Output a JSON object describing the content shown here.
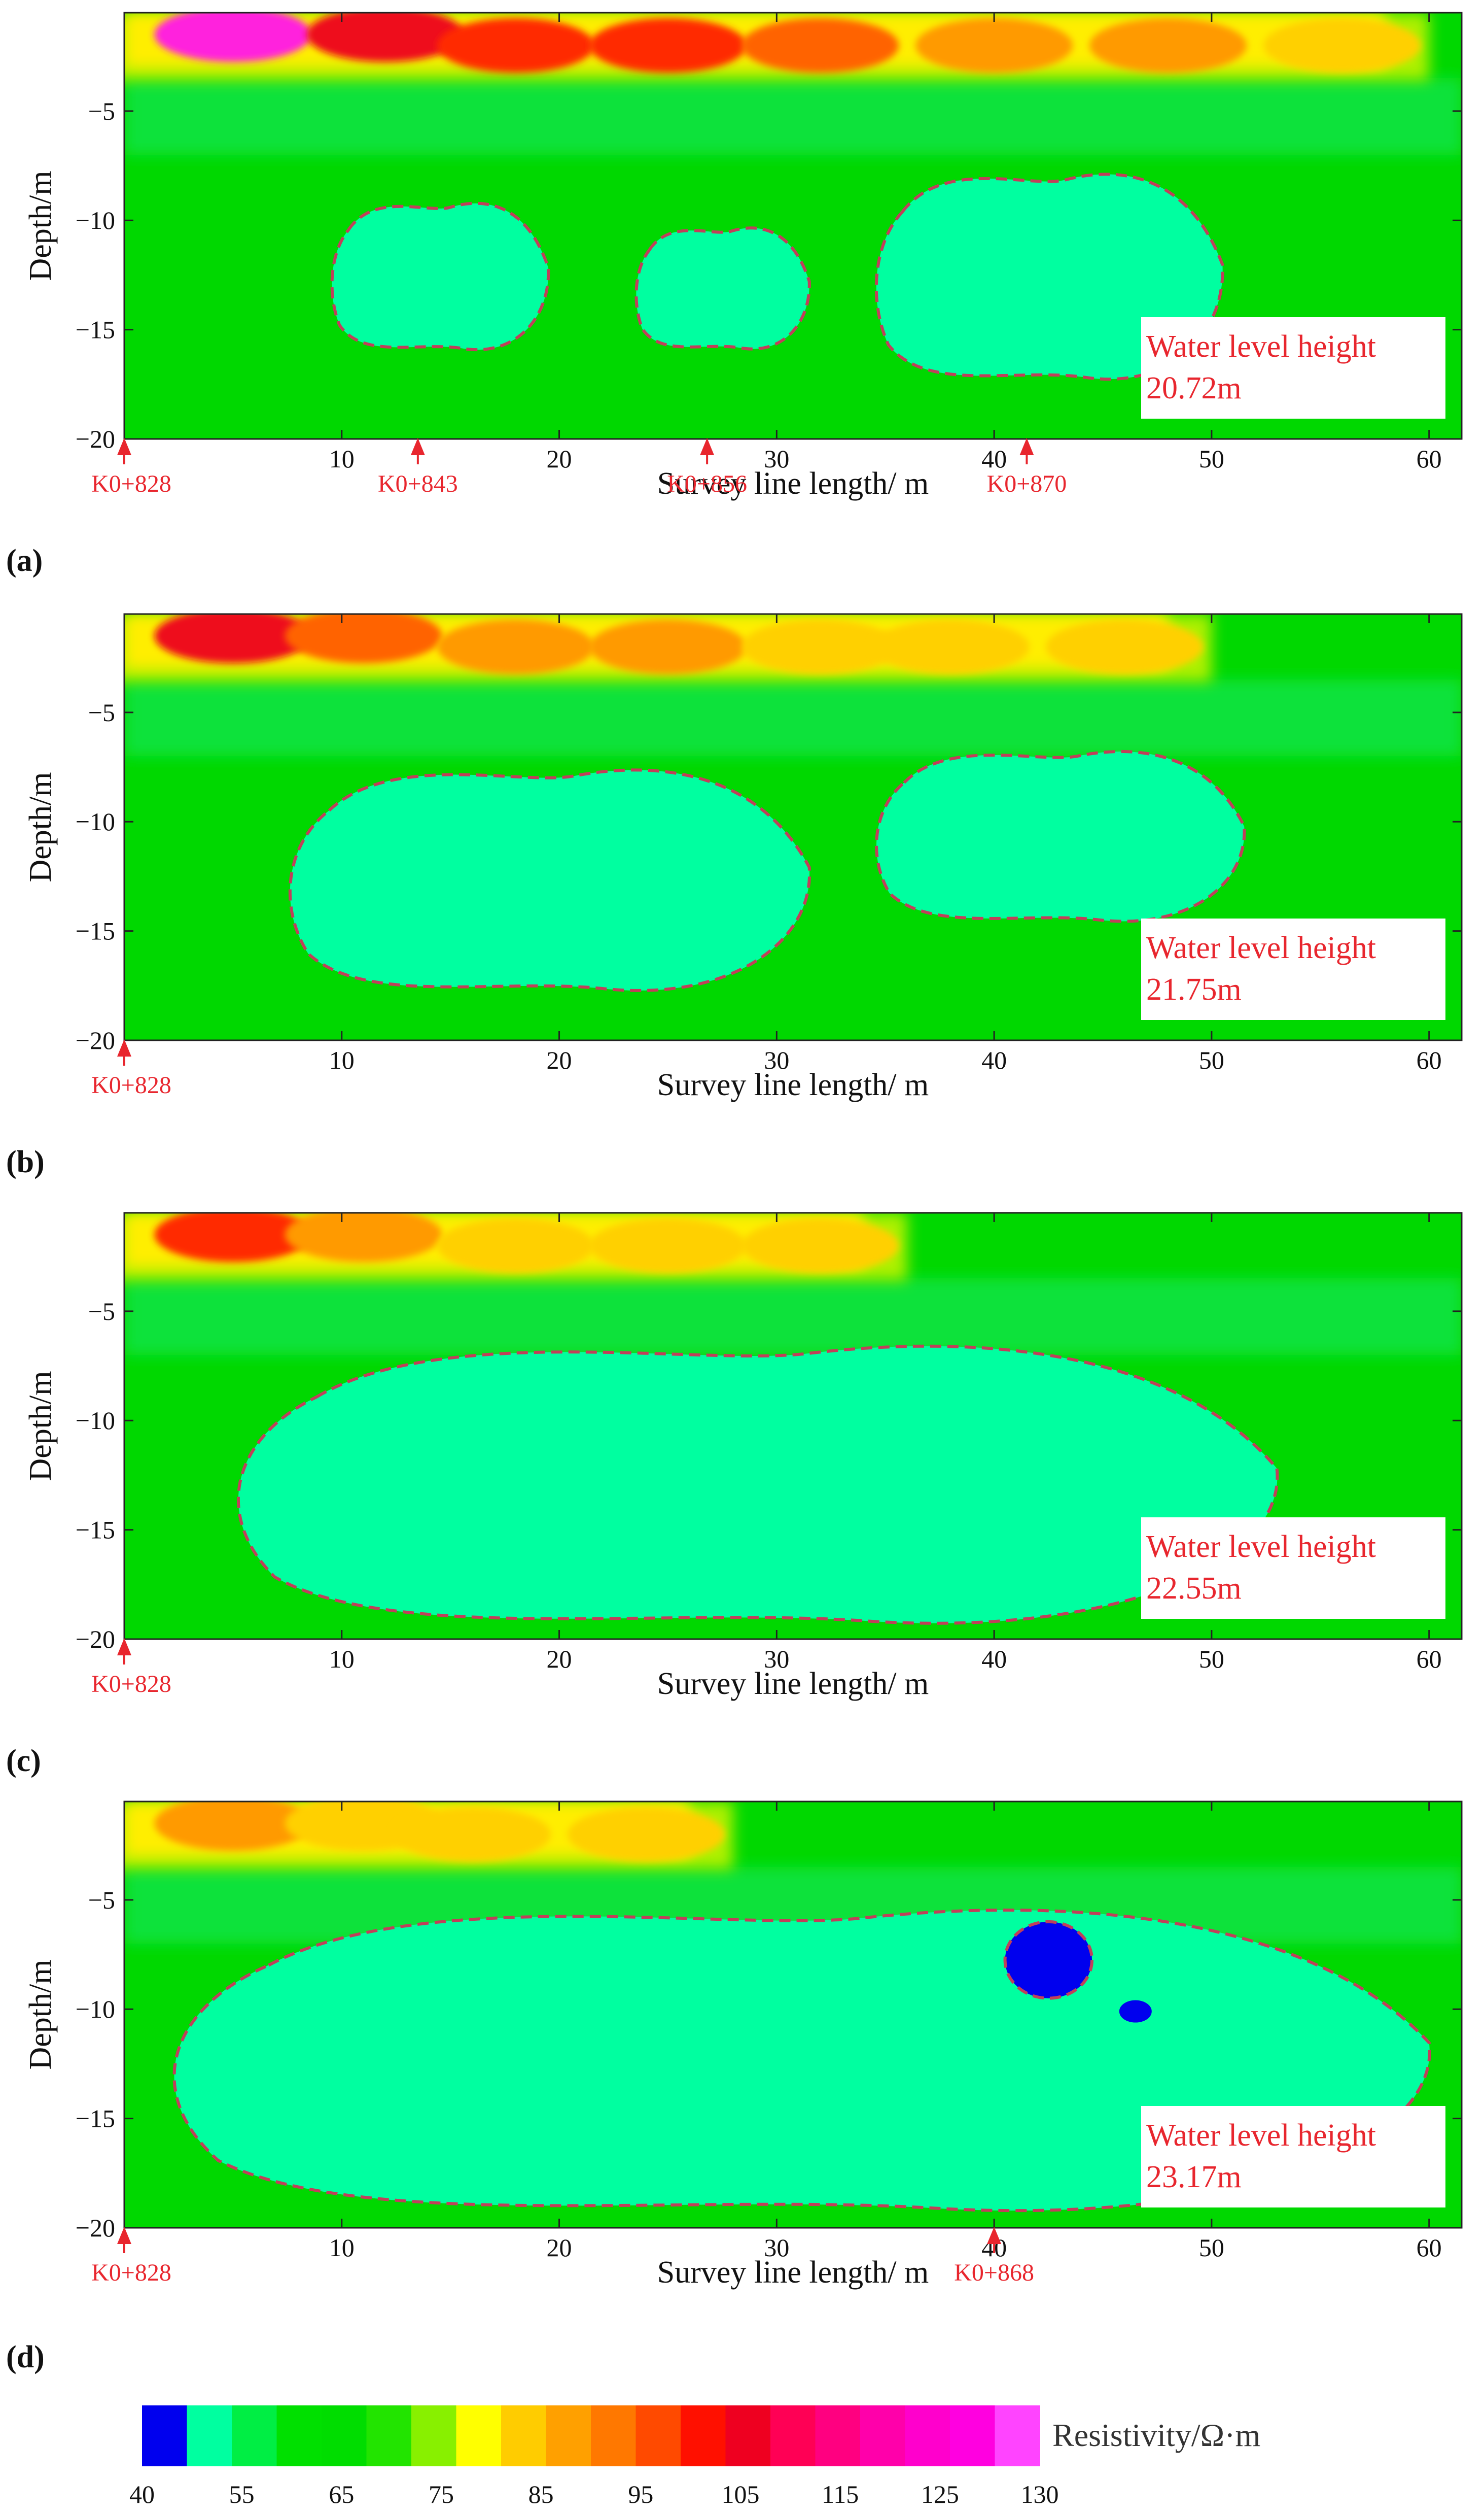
{
  "chart_data": [
    {
      "type": "heatmap",
      "panel": "(a)",
      "xlabel": "Survey line length/ m",
      "ylabel": "Depth/m",
      "xlim": [
        0,
        61.5
      ],
      "ylim": [
        -20,
        -0.5
      ],
      "xticks": [
        "10",
        "20",
        "30",
        "40",
        "50",
        "60"
      ],
      "yticks": [
        "−5",
        "−10",
        "−15",
        "−20"
      ],
      "annotation": [
        "Water level height",
        "20.72m"
      ],
      "markers": [
        {
          "label": "K0+828",
          "x": 0
        },
        {
          "label": "K0+843",
          "x": 13.5
        },
        {
          "label": "K0+856",
          "x": 26.8
        },
        {
          "label": "K0+870",
          "x": 41.5
        }
      ],
      "high_resistivity_band": [
        {
          "x": 5,
          "depth": -1.5,
          "value": 130
        },
        {
          "x": 12,
          "depth": -1.5,
          "value": 105
        },
        {
          "x": 18,
          "depth": -2,
          "value": 100
        },
        {
          "x": 25,
          "depth": -2,
          "value": 100
        },
        {
          "x": 32,
          "depth": -2,
          "value": 95
        },
        {
          "x": 40,
          "depth": -2,
          "value": 90
        },
        {
          "x": 48,
          "depth": -2,
          "value": 90
        },
        {
          "x": 56,
          "depth": -2,
          "value": 80
        }
      ],
      "water_zones": [
        {
          "value_range": [
            55,
            60
          ],
          "x_range": [
            9.5,
            19.5
          ],
          "depth_range": [
            -16.3,
            -8.8
          ]
        },
        {
          "value_range": [
            55,
            60
          ],
          "x_range": [
            23.5,
            31.5
          ],
          "depth_range": [
            -16.2,
            -10
          ]
        },
        {
          "value_range": [
            55,
            60
          ],
          "x_range": [
            34.5,
            50.5
          ],
          "depth_range": [
            -17.8,
            -7.3
          ]
        }
      ]
    },
    {
      "type": "heatmap",
      "panel": "(b)",
      "xlabel": "Survey line length/ m",
      "ylabel": "Depth/m",
      "xlim": [
        0,
        61.5
      ],
      "ylim": [
        -20,
        -0.5
      ],
      "xticks": [
        "10",
        "20",
        "30",
        "40",
        "50",
        "60"
      ],
      "yticks": [
        "−5",
        "−10",
        "−15",
        "−20"
      ],
      "annotation": [
        "Water level height",
        "21.75m"
      ],
      "markers": [
        {
          "label": "K0+828",
          "x": 0
        }
      ],
      "high_resistivity_band": [
        {
          "x": 5,
          "depth": -1.5,
          "value": 105
        },
        {
          "x": 11,
          "depth": -1.5,
          "value": 95
        },
        {
          "x": 18,
          "depth": -2,
          "value": 90
        },
        {
          "x": 25,
          "depth": -2,
          "value": 90
        },
        {
          "x": 32,
          "depth": -2,
          "value": 85
        },
        {
          "x": 38,
          "depth": -2,
          "value": 80
        },
        {
          "x": 46,
          "depth": -2,
          "value": 85
        }
      ],
      "water_zones": [
        {
          "value_range": [
            55,
            60
          ],
          "x_range": [
            7.5,
            31.5
          ],
          "depth_range": [
            -18.3,
            -7
          ]
        },
        {
          "value_range": [
            55,
            60
          ],
          "x_range": [
            34.5,
            51.5
          ],
          "depth_range": [
            -15,
            -6.3
          ]
        }
      ]
    },
    {
      "type": "heatmap",
      "panel": "(c)",
      "xlabel": "Survey line length/ m",
      "ylabel": "Depth/m",
      "xlim": [
        0,
        61.5
      ],
      "ylim": [
        -20,
        -0.5
      ],
      "xticks": [
        "10",
        "20",
        "30",
        "40",
        "50",
        "60"
      ],
      "yticks": [
        "−5",
        "−10",
        "−15",
        "−20"
      ],
      "annotation": [
        "Water level height",
        "22.55m"
      ],
      "markers": [
        {
          "label": "K0+828",
          "x": 0
        }
      ],
      "high_resistivity_band": [
        {
          "x": 5,
          "depth": -1.5,
          "value": 100
        },
        {
          "x": 11,
          "depth": -1.5,
          "value": 90
        },
        {
          "x": 18,
          "depth": -2,
          "value": 85
        },
        {
          "x": 25,
          "depth": -2,
          "value": 80
        },
        {
          "x": 32,
          "depth": -2,
          "value": 80
        }
      ],
      "water_zones": [
        {
          "value_range": [
            55,
            60
          ],
          "x_range": [
            5,
            53
          ],
          "depth_range": [
            -20,
            -5.8
          ]
        }
      ]
    },
    {
      "type": "heatmap",
      "panel": "(d)",
      "xlabel": "Survey line length/ m",
      "ylabel": "Depth/m",
      "xlim": [
        0,
        61.5
      ],
      "ylim": [
        -20,
        -0.5
      ],
      "xticks": [
        "10",
        "20",
        "30",
        "40",
        "50",
        "60"
      ],
      "yticks": [
        "−5",
        "−10",
        "−15",
        "−20"
      ],
      "annotation": [
        "Water level height",
        "23.17m"
      ],
      "markers": [
        {
          "label": "K0+828",
          "x": 0
        },
        {
          "label": "K0+868",
          "x": 40
        }
      ],
      "high_resistivity_band": [
        {
          "x": 5,
          "depth": -1.5,
          "value": 90
        },
        {
          "x": 11,
          "depth": -1.5,
          "value": 80
        },
        {
          "x": 16,
          "depth": -2,
          "value": 80
        },
        {
          "x": 24,
          "depth": -2,
          "value": 80
        }
      ],
      "water_zones": [
        {
          "value_range": [
            55,
            60
          ],
          "x_range": [
            2,
            60
          ],
          "depth_range": [
            -20,
            -4.6
          ]
        }
      ],
      "low_anomaly": {
        "value": 40,
        "x": [
          40.5,
          44.5
        ],
        "depth": [
          -6,
          -9.5
        ]
      }
    }
  ],
  "colorbar": {
    "title": "Resistivity/Ω·m",
    "tick_labels": [
      "40",
      "55",
      "65",
      "75",
      "85",
      "95",
      "105",
      "115",
      "125",
      "130"
    ],
    "colors": [
      "#0000ee",
      "#00ffa0",
      "#00ee44",
      "#00e000",
      "#00dd00",
      "#22e400",
      "#88f000",
      "#ffff00",
      "#ffcc00",
      "#ffa000",
      "#ff7800",
      "#ff4a00",
      "#ff1000",
      "#ee0020",
      "#ff0055",
      "#ff0080",
      "#ff00aa",
      "#ff00cc",
      "#ff00e0",
      "#ff44ff"
    ]
  }
}
